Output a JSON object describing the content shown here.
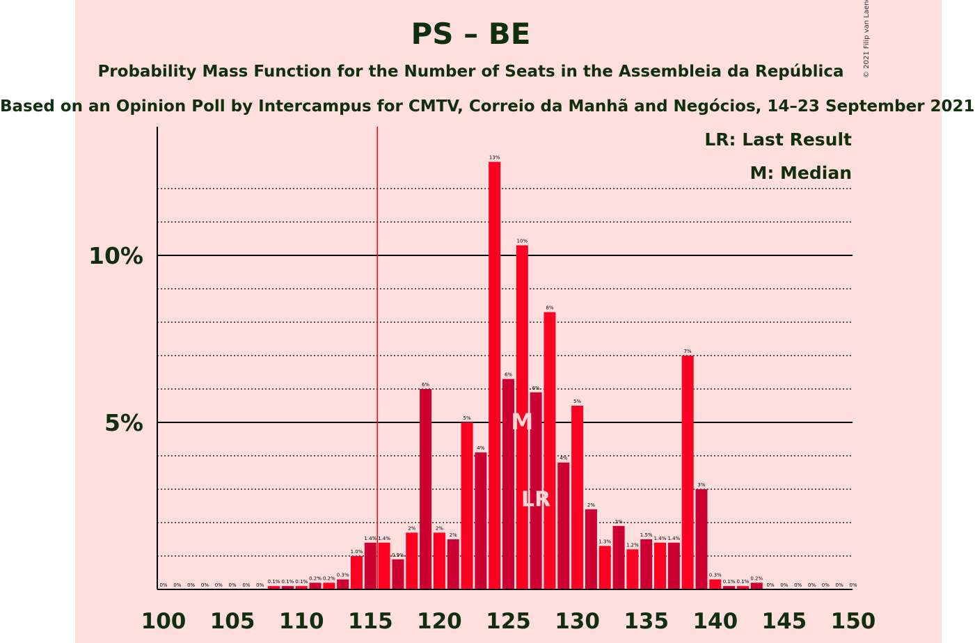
{
  "title": "PS – BE",
  "subtitle": "Probability Mass Function for the Number of Seats in the Assembleia da República",
  "subtitle2": "Based on an Opinion Poll by Intercampus for CMTV, Correio da Manhã and Negócios, 14–23 September 2021",
  "copyright": "© 2021 Filip van Laenen",
  "legend": {
    "lr": "LR: Last Result",
    "m": "M: Median"
  },
  "colors": {
    "background": "#ffdede",
    "bar_light": "#ff0022",
    "bar_dark": "#cc0033",
    "marker_text": "#ffd6d6",
    "threshold_line": "#ff0000"
  },
  "chart_data": {
    "type": "bar",
    "x": [
      100,
      101,
      102,
      103,
      104,
      105,
      106,
      107,
      108,
      109,
      110,
      111,
      112,
      113,
      114,
      115,
      116,
      117,
      118,
      119,
      120,
      121,
      122,
      123,
      124,
      125,
      126,
      127,
      128,
      129,
      130,
      131,
      132,
      133,
      134,
      135,
      136,
      137,
      138,
      139,
      140,
      141,
      142,
      143,
      144,
      145,
      146,
      147,
      148,
      149,
      150
    ],
    "values": [
      0,
      0,
      0,
      0,
      0,
      0,
      0,
      0,
      0.1,
      0.1,
      0.1,
      0.2,
      0.2,
      0.3,
      1.0,
      1.4,
      1.4,
      0.9,
      1.7,
      6.0,
      1.7,
      1.5,
      5.0,
      4.1,
      12.8,
      6.3,
      10.3,
      5.9,
      8.3,
      3.8,
      5.5,
      2.4,
      1.3,
      1.9,
      1.2,
      1.5,
      1.4,
      1.4,
      7.0,
      3.0,
      0.3,
      0.1,
      0.1,
      0.2,
      0,
      0,
      0,
      0,
      0,
      0,
      0
    ],
    "labels": [
      "0%",
      "0%",
      "0%",
      "0%",
      "0%",
      "0%",
      "0%",
      "0%",
      "0.1%",
      "0.1%",
      "0.1%",
      "0.2%",
      "0.2%",
      "0.3%",
      "1.0%",
      "1.4%",
      "1.4%",
      "0.9%",
      "2%",
      "6%",
      "2%",
      "2%",
      "5%",
      "4%",
      "13%",
      "6%",
      "10%",
      "6%",
      "8%",
      "4%",
      "5%",
      "2%",
      "1.3%",
      "2%",
      "1.2%",
      "1.5%",
      "1.4%",
      "1.4%",
      "7%",
      "3%",
      "0.3%",
      "0.1%",
      "0.1%",
      "0.2%",
      "0%",
      "0%",
      "0%",
      "0%",
      "0%",
      "0%",
      "0%"
    ],
    "ylim": [
      0,
      14
    ],
    "yticks": [
      {
        "value": 5,
        "label": "5%"
      },
      {
        "value": 10,
        "label": "10%"
      }
    ],
    "minor_gridlines": [
      1,
      2,
      3,
      4,
      6,
      7,
      8,
      9,
      11,
      12
    ],
    "xticks": [
      100,
      105,
      110,
      115,
      120,
      125,
      130,
      135,
      140,
      145,
      150
    ],
    "majority_threshold": 116,
    "median": 126,
    "last_result": 127,
    "marker_labels": {
      "median": "M",
      "last_result": "LR"
    },
    "grid": true,
    "legend_position": "top-right"
  }
}
